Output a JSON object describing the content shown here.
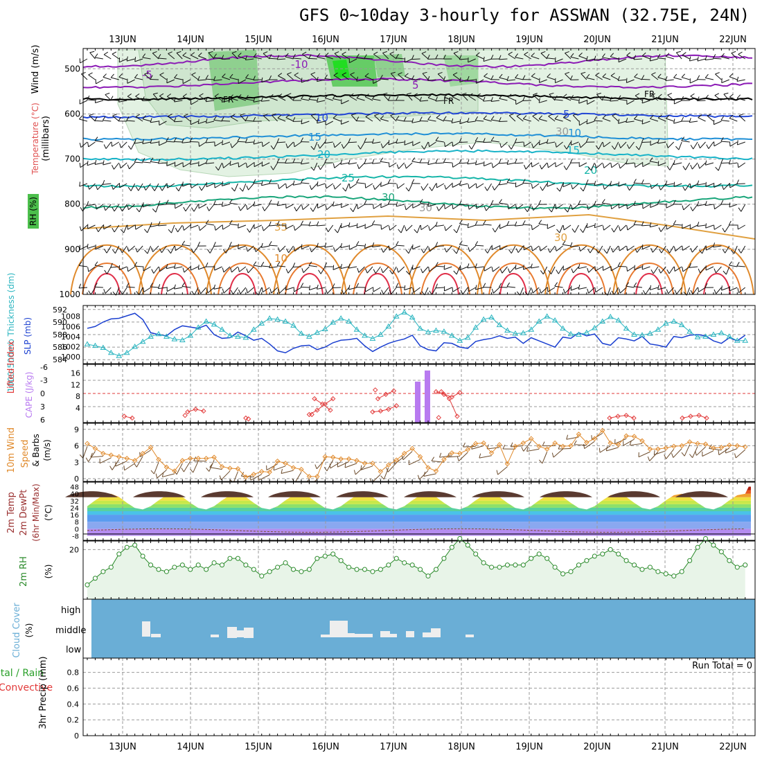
{
  "title": "GFS 0~10day 3-hourly for ASSWAN (32.75E, 24N)",
  "dates": [
    "13JUN",
    "14JUN",
    "15JUN",
    "16JUN",
    "17JUN",
    "18JUN",
    "19JUN",
    "20JUN",
    "21JUN",
    "22JUN"
  ],
  "colors": {
    "axis": "#000000",
    "grid": "#999999",
    "purple": "#8a2be2",
    "orange": "#e08a2c",
    "red": "#e23a3a",
    "green": "#3a9a3a",
    "cyan": "#2ab5c0",
    "blue": "#1e3ccc",
    "cloud": "#6aaed6"
  },
  "panels": {
    "upper_air": {
      "ylabel": "(millibars)",
      "legend": [
        "Wind (m/s)",
        "Temperature (°C)",
        "RH (%)"
      ],
      "pressure_levels": [
        500,
        600,
        700,
        800,
        900,
        1000
      ],
      "freezing_label": "FR",
      "isotherm_labels": [
        "-10",
        "-5",
        "5",
        "10",
        "15",
        "20",
        "25",
        "30",
        "35",
        "10",
        "30",
        "30",
        "30"
      ]
    },
    "pressure": {
      "ylabel_left": "1000-500mb Thickness (dm)",
      "ylabel_right": "SLP (mb)",
      "ticks_left": [
        "592",
        "590",
        "588",
        "586",
        "584"
      ],
      "ticks_right": [
        "1008",
        "1006",
        "1004",
        "1002",
        "1000"
      ]
    },
    "stability": {
      "ylabel_left": "Lifted Index",
      "ylabel_right": "CAPE (J/kg)",
      "ticks_left": [
        "-6",
        "-3",
        "0",
        "3",
        "6"
      ],
      "ticks_right": [
        "16",
        "12",
        "8",
        "4"
      ]
    },
    "wind10m": {
      "ylabel": "10m Wind Speed & Barbs (m/s)",
      "ticks": [
        "9",
        "6",
        "3",
        "0"
      ]
    },
    "temp2m": {
      "ylabel": "2m Temp 2m DewPt (6hr Min/Max) (°C)",
      "ticks": [
        "48",
        "40",
        "32",
        "24",
        "16",
        "8",
        "0",
        "-8"
      ]
    },
    "rh2m": {
      "ylabel": "2m RH (%)",
      "ticks": [
        "20"
      ]
    },
    "cloud": {
      "ylabel": "Cloud Cover (%)",
      "levels": [
        "high",
        "middle",
        "low"
      ]
    },
    "precip": {
      "ylabel": "3hr Precip (mm)",
      "legend_total": "Total / Rain",
      "legend_conv": "Convective",
      "ticks": [
        "0.8",
        "0.6",
        "0.4",
        "0.2",
        "0"
      ],
      "run_total": "Run Total = 0"
    }
  },
  "chart_data": [
    {
      "type": "line",
      "title": "1000-500mb Thickness / SLP",
      "x_start": "12JUN 12Z",
      "x_step_hours": 3,
      "series": [
        {
          "name": "1000-500mb Thickness (dm)",
          "values": [
            589.0,
            589.3,
            590.0,
            590.5,
            590.6,
            591.0,
            591.4,
            590.4,
            588.3,
            588.0,
            587.8,
            588.8,
            589.4,
            589.2,
            589.0,
            589.5,
            588.0,
            587.4,
            587.5,
            588.4,
            587.8,
            587.1,
            587.4,
            586.5,
            585.4,
            585.1,
            585.8,
            586.2,
            586.3,
            585.6,
            586.0,
            586.7,
            587.1,
            587.2,
            587.4,
            586.2,
            585.3,
            586.0,
            586.6,
            587.0,
            587.3,
            587.9,
            586.2,
            585.6,
            585.4,
            586.7,
            586.6,
            586.0,
            585.8,
            586.9,
            587.2,
            587.4,
            587.8,
            587.4,
            587.6,
            586.6,
            587.5,
            587.0,
            586.5,
            586.0,
            587.6,
            587.4,
            588.3,
            587.8,
            588.1,
            586.6,
            586.3,
            587.5,
            587.3,
            587.0,
            587.7,
            586.5,
            586.3,
            586.0,
            587.7,
            587.5,
            587.9,
            588.0,
            587.8,
            587.0,
            586.6,
            587.5,
            587.0,
            587.9
          ]
        },
        {
          "name": "SLP (mb)",
          "values": [
            1002.5,
            1002.2,
            1001.8,
            1000.8,
            1000.2,
            1000.8,
            1002.0,
            1003.0,
            1004.0,
            1004.5,
            1004.0,
            1003.5,
            1003.3,
            1004.2,
            1005.8,
            1007.0,
            1006.4,
            1005.4,
            1004.2,
            1004.0,
            1003.8,
            1005.4,
            1006.6,
            1007.6,
            1007.4,
            1007.0,
            1006.2,
            1004.6,
            1004.0,
            1004.8,
            1005.5,
            1006.8,
            1007.6,
            1007.0,
            1005.4,
            1004.2,
            1003.6,
            1004.4,
            1006.0,
            1008.0,
            1008.8,
            1007.8,
            1005.6,
            1004.9,
            1005.2,
            1005.0,
            1004.2,
            1003.2,
            1003.8,
            1005.8,
            1007.4,
            1007.8,
            1006.3,
            1005.2,
            1004.6,
            1004.7,
            1005.4,
            1007.0,
            1008.0,
            1007.2,
            1005.6,
            1004.5,
            1004.4,
            1004.8,
            1005.7,
            1007.0,
            1007.9,
            1007.2,
            1005.6,
            1004.4,
            1004.3,
            1004.6,
            1005.4,
            1006.6,
            1007.0,
            1006.3,
            1005.0,
            1003.9,
            1004.0,
            1004.4,
            1004.7,
            1004.0,
            1003.2,
            1003.2
          ]
        }
      ]
    },
    {
      "type": "bar",
      "title": "CAPE (J/kg)",
      "x": [
        "17JUN 09Z",
        "17JUN 12Z"
      ],
      "values": [
        14.0,
        17.8
      ],
      "ylim": [
        0,
        18
      ]
    },
    {
      "type": "line",
      "title": "Lifted Index",
      "x": [
        "13JUN 12Z",
        "13JUN 15Z",
        "14JUN 12Z",
        "14JUN 15Z",
        "14JUN 18Z",
        "14JUN 21Z",
        "15JUN 00Z",
        "15JUN 21Z",
        "16JUN 00Z",
        "16JUN 03Z",
        "16JUN 06Z",
        "16JUN 09Z",
        "16JUN 12Z",
        "16JUN 15Z",
        "16JUN 18Z",
        "16JUN 21Z",
        "17JUN 00Z",
        "17JUN 03Z",
        "17JUN 06Z",
        "17JUN 09Z",
        "17JUN 12Z",
        "17JUN 15Z",
        "17JUN 18Z",
        "17JUN 21Z",
        "18JUN 00Z",
        "18JUN 03Z",
        "18JUN 06Z",
        "18JUN 09Z",
        "18JUN 12Z",
        "18JUN 15Z",
        "18JUN 18Z",
        "18JUN 21Z"
      ],
      "values": [
        5.2,
        5.6,
        4.2,
        3.6,
        4.0,
        5.0,
        5.6,
        5.8,
        4.8,
        3.8,
        2.4,
        1.2,
        1.2,
        2.4,
        3.8,
        4.8,
        4.2,
        4.0,
        3.6,
        2.8,
        1.2,
        0.2,
        -0.6,
        -0.8,
        -0.4,
        0.2,
        0.8,
        -0.2,
        -0.4,
        1.2,
        5.2,
        5.5
      ],
      "ylim": [
        6,
        -6
      ]
    },
    {
      "type": "line",
      "title": "10m Wind Speed (m/s)",
      "x_start": "12JUN 12Z",
      "x_step_hours": 3,
      "values": [
        6.4,
        5.5,
        4.6,
        4.3,
        4.0,
        3.7,
        3.3,
        4.6,
        5.7,
        3.5,
        2.1,
        1.4,
        3.3,
        3.7,
        3.7,
        3.7,
        3.9,
        2.2,
        1.9,
        1.8,
        0.3,
        0.8,
        1.3,
        1.2,
        3.2,
        2.8,
        2.0,
        1.7,
        0.4,
        0.4,
        4.0,
        3.9,
        3.6,
        3.6,
        3.3,
        2.8,
        2.8,
        1.3,
        2.5,
        3.4,
        4.6,
        5.5,
        4.0,
        2.0,
        1.4,
        3.5,
        4.7,
        4.6,
        5.3,
        6.4,
        6.5,
        4.7,
        6.2,
        2.7,
        5.9,
        6.5,
        7.3,
        5.9,
        5.4,
        6.5,
        5.9,
        6.0,
        8.1,
        6.6,
        7.3,
        8.8,
        6.5,
        6.2,
        7.8,
        7.7,
        6.9,
        5.4,
        5.4,
        5.6,
        5.9,
        6.0,
        6.7,
        6.4,
        6.3,
        5.6,
        5.7,
        6.1,
        6.0,
        5.8
      ],
      "ylim": [
        0,
        9
      ]
    },
    {
      "type": "line",
      "title": "2m RH (%)",
      "x_start": "12JUN 12Z",
      "x_step_hours": 3,
      "values": [
        4,
        7,
        10,
        12,
        18,
        21,
        22,
        17,
        13,
        11,
        10,
        12,
        13,
        11,
        13,
        11,
        14,
        13,
        16,
        16,
        13,
        11,
        8,
        10,
        12,
        14,
        11,
        10,
        11,
        16,
        17,
        18,
        15,
        12,
        11,
        11,
        10,
        11,
        13,
        16,
        14,
        13,
        11,
        8,
        11,
        16,
        21,
        25,
        22,
        18,
        14,
        12,
        12,
        13,
        13,
        13,
        16,
        18,
        16,
        12,
        9,
        10,
        13,
        15,
        17,
        18,
        20,
        18,
        15,
        13,
        11,
        12,
        10,
        9,
        8,
        10,
        15,
        21,
        25,
        22,
        19,
        15,
        12,
        13
      ],
      "ylim": [
        0,
        25
      ]
    }
  ]
}
